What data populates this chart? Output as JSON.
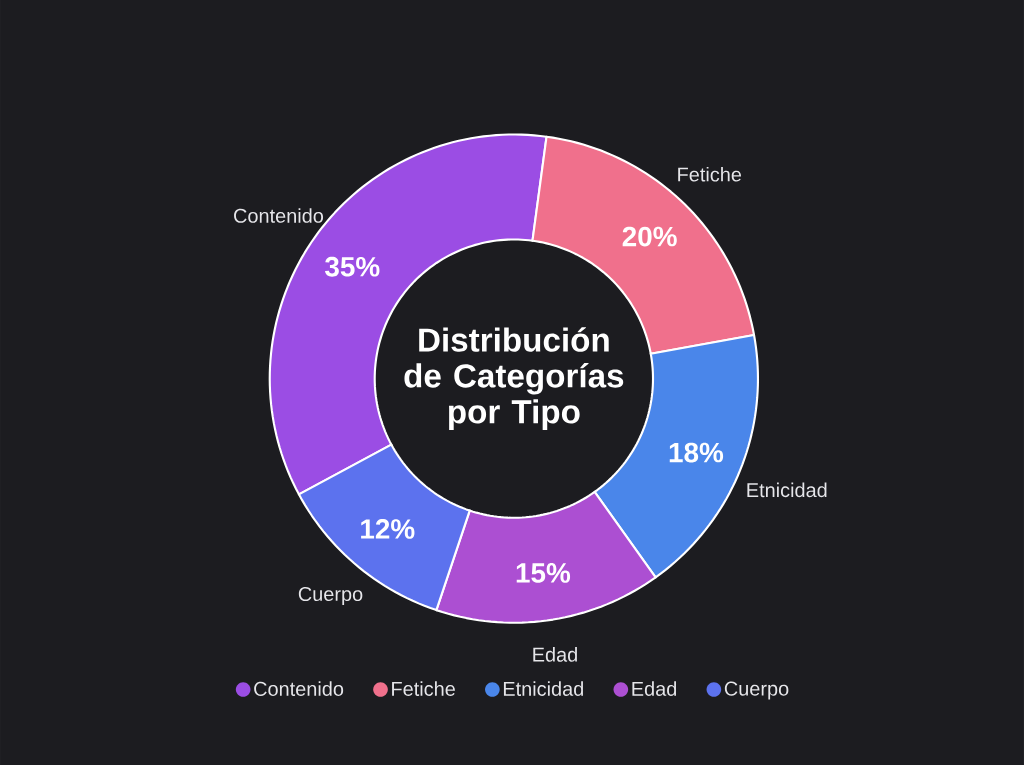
{
  "chart_data": {
    "type": "donut",
    "title": "Distribución de Categorías por Tipo",
    "categories": [
      "Contenido",
      "Fetiche",
      "Etnicidad",
      "Edad",
      "Cuerpo"
    ],
    "values": [
      35,
      20,
      18,
      15,
      12
    ],
    "colors": [
      "#9b4de4",
      "#f0708c",
      "#4a86ea",
      "#ac4fd2",
      "#5c72ee"
    ],
    "value_labels": [
      "35%",
      "20%",
      "18%",
      "15%",
      "12%"
    ],
    "legend": "bottom"
  }
}
